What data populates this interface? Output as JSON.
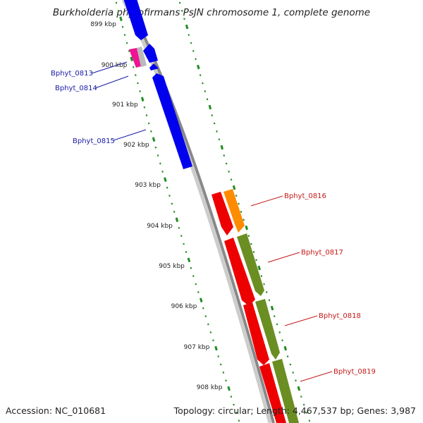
{
  "title": "Burkholderia phytofirmans PsJN chromosome 1, complete genome",
  "footer": {
    "accession": "Accession: NC_010681",
    "summary": "Topology: circular; Length: 4,467,537 bp; Genes: 3,987"
  },
  "ruler_labels": [
    "899 kbp",
    "900 kbp",
    "901 kbp",
    "902 kbp",
    "903 kbp",
    "904 kbp",
    "905 kbp",
    "906 kbp",
    "907 kbp",
    "908 kbp"
  ],
  "gene_labels": {
    "reverse": [
      "Bphyt_0813",
      "Bphyt_0814",
      "Bphyt_0815"
    ],
    "forward": [
      "Bphyt_0816",
      "Bphyt_0817",
      "Bphyt_0818",
      "Bphyt_0819"
    ]
  },
  "colors": {
    "blue": "#0000ee",
    "red": "#ee0000",
    "orange": "#ff8c00",
    "olive": "#6b8e23",
    "pink": "#ee1493",
    "ruler": "#228b22",
    "backbone": "#888888"
  }
}
